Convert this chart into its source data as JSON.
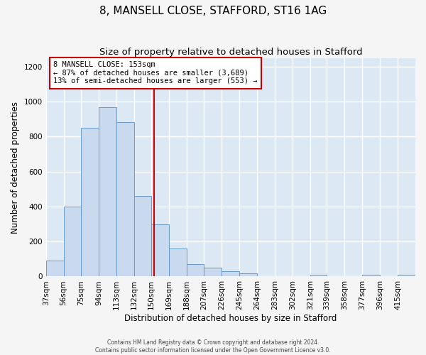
{
  "title": "8, MANSELL CLOSE, STAFFORD, ST16 1AG",
  "subtitle": "Size of property relative to detached houses in Stafford",
  "xlabel": "Distribution of detached houses by size in Stafford",
  "ylabel": "Number of detached properties",
  "bar_labels": [
    "37sqm",
    "56sqm",
    "75sqm",
    "94sqm",
    "113sqm",
    "132sqm",
    "150sqm",
    "169sqm",
    "188sqm",
    "207sqm",
    "226sqm",
    "245sqm",
    "264sqm",
    "283sqm",
    "302sqm",
    "321sqm",
    "339sqm",
    "358sqm",
    "377sqm",
    "396sqm",
    "415sqm"
  ],
  "bar_heights": [
    90,
    400,
    850,
    970,
    885,
    460,
    300,
    160,
    70,
    50,
    30,
    20,
    0,
    0,
    0,
    10,
    0,
    0,
    10,
    0,
    10
  ],
  "bar_edges": [
    37,
    56,
    75,
    94,
    113,
    132,
    150,
    169,
    188,
    207,
    226,
    245,
    264,
    283,
    302,
    321,
    339,
    358,
    377,
    396,
    415,
    434
  ],
  "bar_color": "#c9d9ee",
  "bar_edge_color": "#6699cc",
  "vline_x": 153,
  "vline_color": "#cc0000",
  "ylim": [
    0,
    1250
  ],
  "yticks": [
    0,
    200,
    400,
    600,
    800,
    1000,
    1200
  ],
  "annotation_title": "8 MANSELL CLOSE: 153sqm",
  "annotation_line1": "← 87% of detached houses are smaller (3,689)",
  "annotation_line2": "13% of semi-detached houses are larger (553) →",
  "annotation_box_color": "#cc0000",
  "plot_bg_color": "#dde8f5",
  "fig_bg_color": "#f5f5f5",
  "grid_color": "#ffffff",
  "title_fontsize": 11,
  "subtitle_fontsize": 9.5,
  "axis_label_fontsize": 8.5,
  "tick_fontsize": 7.5,
  "footer_line1": "Contains HM Land Registry data © Crown copyright and database right 2024.",
  "footer_line2": "Contains public sector information licensed under the Open Government Licence v3.0."
}
